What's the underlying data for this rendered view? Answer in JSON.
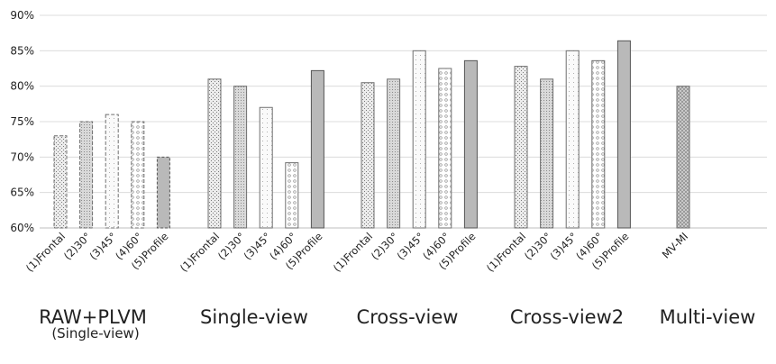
{
  "chart_data": {
    "type": "bar",
    "title": "",
    "xlabel": "",
    "ylabel": "",
    "ylim": [
      60,
      90
    ],
    "yticks": [
      "60%",
      "65%",
      "70%",
      "75%",
      "80%",
      "85%",
      "90%"
    ],
    "grid": true,
    "legend": "none",
    "groups": [
      {
        "name": "RAW+PLVM",
        "subtitle": "(Single-view)",
        "categories": [
          "(1)Frontal",
          "(2)30°",
          "(3)45°",
          "(4)60°",
          "(5)Profile"
        ],
        "values": [
          73,
          75,
          76,
          75,
          70
        ]
      },
      {
        "name": "Single-view",
        "subtitle": "",
        "categories": [
          "(1)Frontal",
          "(2)30°",
          "(3)45°",
          "(4)60°",
          "(5)Profile"
        ],
        "values": [
          81,
          80,
          77,
          69.2,
          82.2
        ]
      },
      {
        "name": "Cross-view",
        "subtitle": "",
        "categories": [
          "(1)Frontal",
          "(2)30°",
          "(3)45°",
          "(4)60°",
          "(5)Profile"
        ],
        "values": [
          80.5,
          81,
          85,
          82.5,
          83.6
        ]
      },
      {
        "name": "Cross-view2",
        "subtitle": "",
        "categories": [
          "(1)Frontal",
          "(2)30°",
          "(3)45°",
          "(4)60°",
          "(5)Profile"
        ],
        "values": [
          82.8,
          81,
          85,
          83.6,
          86.4
        ]
      },
      {
        "name": "Multi-view",
        "subtitle": "",
        "categories": [
          "MV-MI"
        ],
        "values": [
          80
        ]
      }
    ]
  }
}
